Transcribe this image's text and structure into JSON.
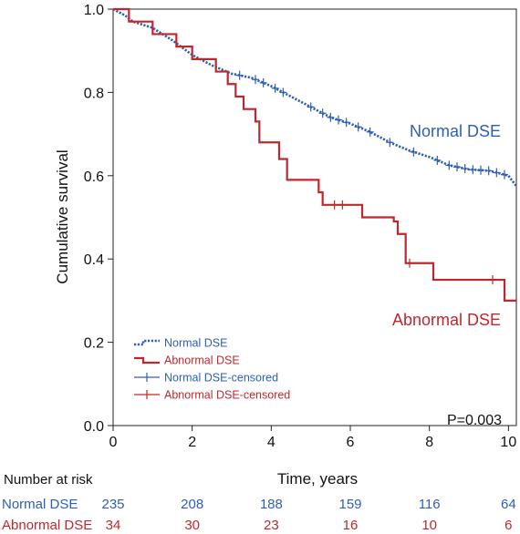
{
  "chart_data": {
    "type": "line",
    "title": "",
    "xlabel": "Time, years",
    "ylabel": "Cumulative survival",
    "xlim": [
      0,
      10.2
    ],
    "ylim": [
      0,
      1.0
    ],
    "x_ticks": [
      "0",
      "2",
      "4",
      "6",
      "8",
      "10"
    ],
    "y_ticks": [
      "0.0",
      "0.2",
      "0.4",
      "0.6",
      "0.8",
      "1.0"
    ],
    "grid": false,
    "legend_position": "bottom-left",
    "p_value": "P=0.003",
    "colors": {
      "normal": "#2f5fb3",
      "abnormal": "#c0272d"
    },
    "series": [
      {
        "name": "Normal DSE",
        "label": "Normal DSE",
        "color": "#2f5fb3",
        "style": "dotted",
        "points": [
          [
            0,
            1.0
          ],
          [
            0.3,
            0.985
          ],
          [
            0.5,
            0.97
          ],
          [
            1.0,
            0.955
          ],
          [
            1.5,
            0.925
          ],
          [
            2.0,
            0.89
          ],
          [
            2.5,
            0.865
          ],
          [
            3.0,
            0.845
          ],
          [
            3.5,
            0.835
          ],
          [
            4.0,
            0.815
          ],
          [
            4.5,
            0.79
          ],
          [
            5.0,
            0.765
          ],
          [
            5.5,
            0.74
          ],
          [
            6.0,
            0.725
          ],
          [
            6.5,
            0.705
          ],
          [
            7.0,
            0.68
          ],
          [
            7.5,
            0.66
          ],
          [
            8.0,
            0.645
          ],
          [
            8.5,
            0.625
          ],
          [
            9.0,
            0.615
          ],
          [
            9.5,
            0.612
          ],
          [
            9.8,
            0.605
          ],
          [
            10.0,
            0.6
          ],
          [
            10.2,
            0.575
          ]
        ],
        "censored_x": [
          3.2,
          3.6,
          3.8,
          4.1,
          4.3,
          5.0,
          5.3,
          5.5,
          5.7,
          5.9,
          6.2,
          6.5,
          7.0,
          7.6,
          8.2,
          8.5,
          8.7,
          8.9,
          9.1,
          9.3,
          9.5,
          9.7,
          9.9
        ]
      },
      {
        "name": "Abnormal DSE",
        "label": "Abnormal DSE",
        "color": "#c0272d",
        "style": "step",
        "points": [
          [
            0,
            1.0
          ],
          [
            0.4,
            0.97
          ],
          [
            1.0,
            0.94
          ],
          [
            1.6,
            0.91
          ],
          [
            2.0,
            0.88
          ],
          [
            2.6,
            0.85
          ],
          [
            2.9,
            0.82
          ],
          [
            3.1,
            0.79
          ],
          [
            3.3,
            0.76
          ],
          [
            3.6,
            0.73
          ],
          [
            3.7,
            0.68
          ],
          [
            4.2,
            0.64
          ],
          [
            4.4,
            0.59
          ],
          [
            5.2,
            0.56
          ],
          [
            5.3,
            0.53
          ],
          [
            6.1,
            0.53
          ],
          [
            6.3,
            0.5
          ],
          [
            7.1,
            0.49
          ],
          [
            7.2,
            0.46
          ],
          [
            7.4,
            0.39
          ],
          [
            7.5,
            0.39
          ],
          [
            8.1,
            0.35
          ],
          [
            9.9,
            0.35
          ],
          [
            9.9,
            0.3
          ],
          [
            10.2,
            0.3
          ]
        ],
        "censored_x": [
          5.6,
          5.8,
          7.5,
          9.6
        ]
      }
    ],
    "legend": [
      {
        "label": "Normal DSE",
        "type": "line-dotted",
        "color": "#2f5fb3"
      },
      {
        "label": "Abnormal DSE",
        "type": "line-step",
        "color": "#c0272d"
      },
      {
        "label": "Normal DSE-censored",
        "type": "censor",
        "color": "#2f5fb3"
      },
      {
        "label": "Abnormal DSE-censored",
        "type": "censor",
        "color": "#c0272d"
      }
    ],
    "number_at_risk": {
      "title": "Number at risk",
      "times": [
        0,
        2,
        4,
        6,
        8,
        10
      ],
      "rows": [
        {
          "name": "Normal DSE",
          "color": "#2f5fb3",
          "values": [
            "235",
            "208",
            "188",
            "159",
            "116",
            "64"
          ]
        },
        {
          "name": "Abnormal DSE",
          "color": "#c0272d",
          "values": [
            "34",
            "30",
            "23",
            "16",
            "10",
            "6"
          ]
        }
      ]
    }
  }
}
